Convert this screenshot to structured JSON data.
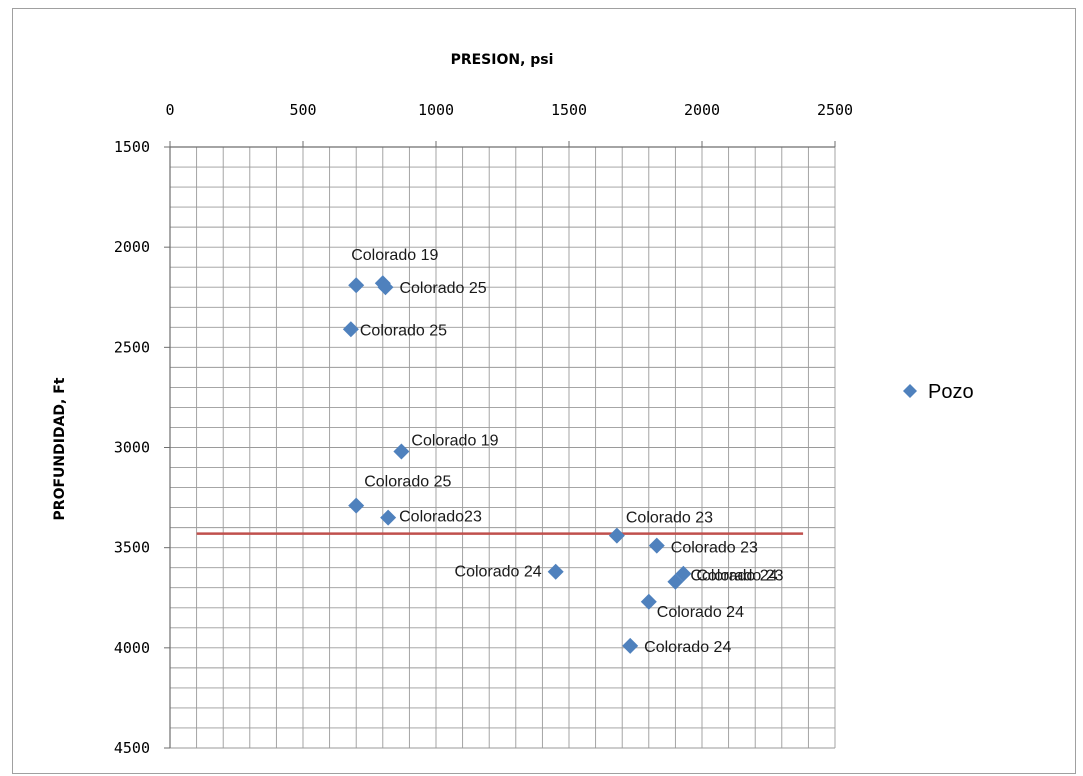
{
  "chart_data": {
    "type": "scatter",
    "xlabel": "PRESION, psi",
    "ylabel": "PROFUNDIDAD, Ft",
    "xlim": [
      0,
      2500
    ],
    "ylim": [
      1500,
      4500
    ],
    "y_inverted": true,
    "x_axis_position": "top",
    "x_ticks": [
      0,
      500,
      1000,
      1500,
      2000,
      2500
    ],
    "y_ticks": [
      1500,
      2000,
      2500,
      3000,
      3500,
      4000,
      4500
    ],
    "grid": true,
    "legend": {
      "placement": "right",
      "entries": [
        "Pozo"
      ]
    },
    "marker_color": "#4f81bd",
    "reference_line": {
      "y": 3430,
      "x_range": [
        100,
        2380
      ],
      "color": "#c0504d"
    },
    "series": [
      {
        "name": "Pozo",
        "points": [
          {
            "x": 700,
            "y": 2190,
            "label": "Colorado 19"
          },
          {
            "x": 800,
            "y": 2180,
            "label": ""
          },
          {
            "x": 810,
            "y": 2200,
            "label": "Colorado 25"
          },
          {
            "x": 680,
            "y": 2410,
            "label": "Colorado 25"
          },
          {
            "x": 870,
            "y": 3020,
            "label": "Colorado 19"
          },
          {
            "x": 700,
            "y": 3290,
            "label": "Colorado 25"
          },
          {
            "x": 820,
            "y": 3350,
            "label": "Colorado23"
          },
          {
            "x": 1680,
            "y": 3440,
            "label": "Colorado 23"
          },
          {
            "x": 1830,
            "y": 3490,
            "label": "Colorado 23"
          },
          {
            "x": 1450,
            "y": 3620,
            "label": "Colorado 24"
          },
          {
            "x": 1930,
            "y": 3630,
            "label": "Colorado 23"
          },
          {
            "x": 1900,
            "y": 3670,
            "label": "Colorado 24"
          },
          {
            "x": 1800,
            "y": 3770,
            "label": "Colorado 24"
          },
          {
            "x": 1730,
            "y": 3990,
            "label": "Colorado 24"
          }
        ]
      }
    ]
  }
}
